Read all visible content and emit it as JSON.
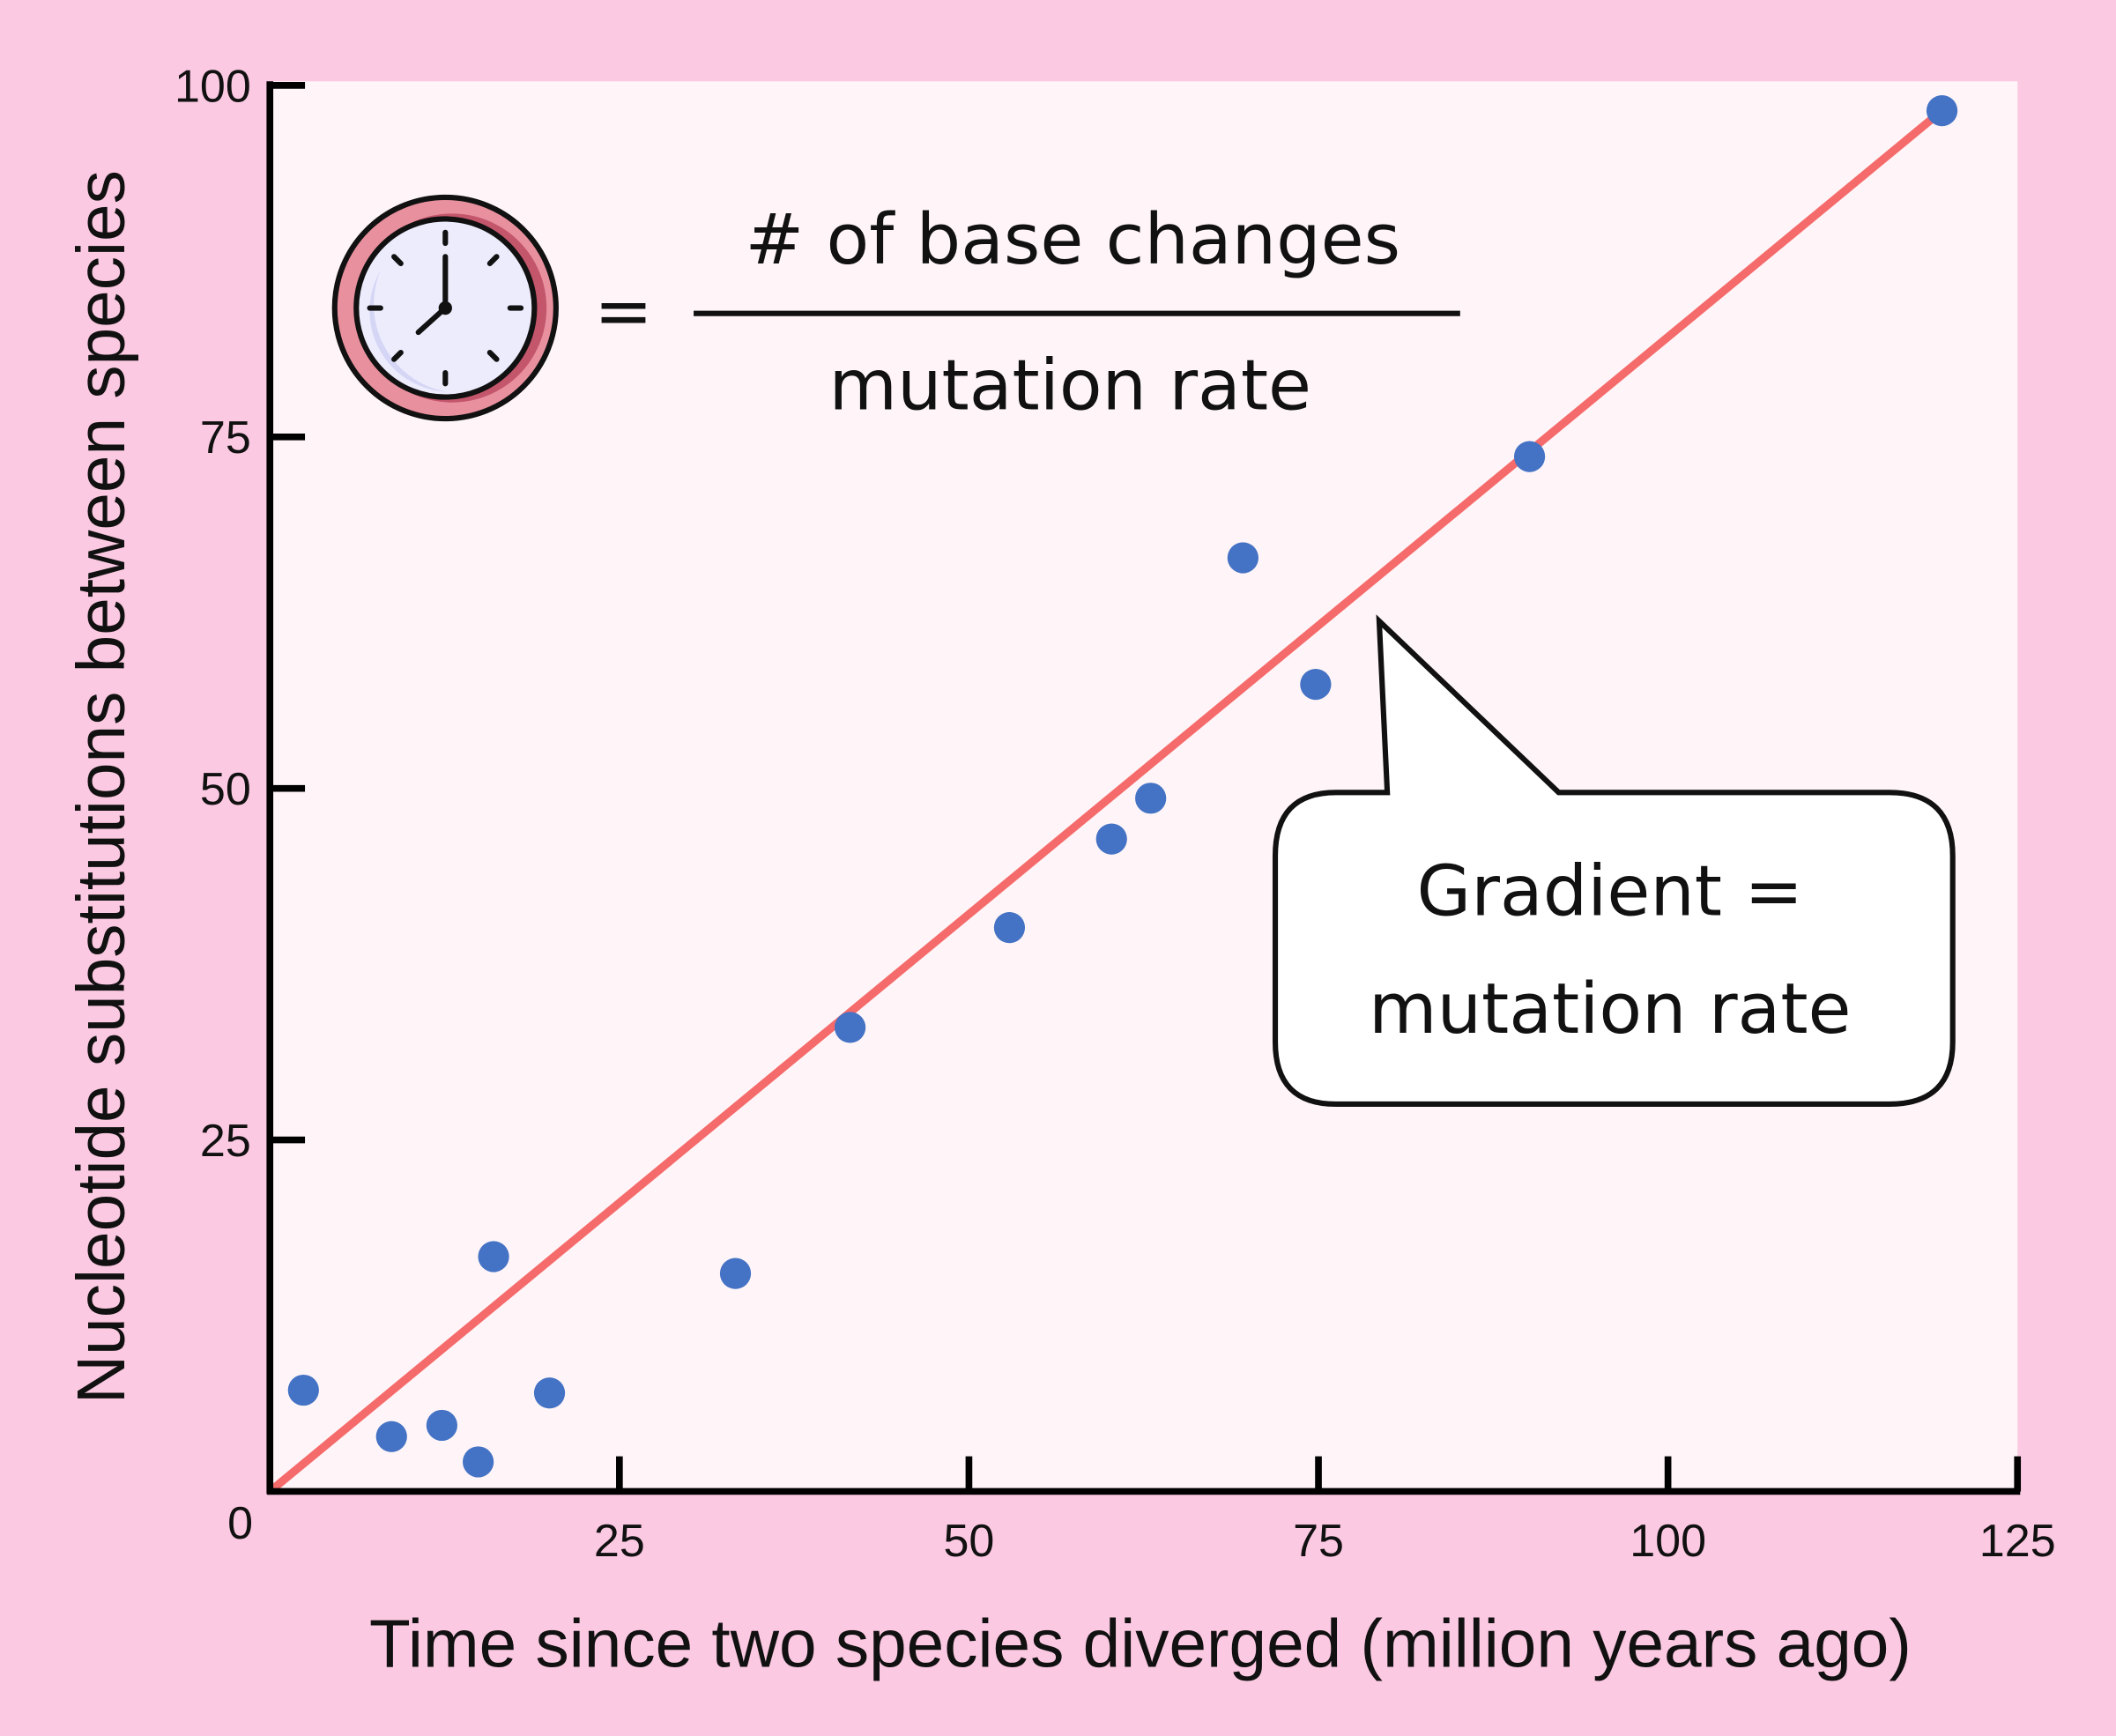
{
  "chart_data": {
    "type": "scatter",
    "xlabel": "Time since two species diverged (million years ago)",
    "ylabel": "Nucleotide substitutions between species",
    "xlim": [
      0,
      125
    ],
    "ylim": [
      0,
      100
    ],
    "xticks": [
      "0",
      "25",
      "50",
      "75",
      "100",
      "125"
    ],
    "yticks": [
      "25",
      "50",
      "75",
      "100"
    ],
    "grid": false,
    "points": [
      {
        "x": 2.4,
        "y": 7.2
      },
      {
        "x": 8.7,
        "y": 3.9
      },
      {
        "x": 12.3,
        "y": 4.7
      },
      {
        "x": 14.9,
        "y": 2.1
      },
      {
        "x": 16.0,
        "y": 16.7
      },
      {
        "x": 20.0,
        "y": 7.0
      },
      {
        "x": 33.3,
        "y": 15.5
      },
      {
        "x": 41.5,
        "y": 33.0
      },
      {
        "x": 52.9,
        "y": 40.1
      },
      {
        "x": 60.2,
        "y": 46.4
      },
      {
        "x": 63.0,
        "y": 49.3
      },
      {
        "x": 69.6,
        "y": 66.4
      },
      {
        "x": 74.8,
        "y": 57.4
      },
      {
        "x": 90.1,
        "y": 73.6
      },
      {
        "x": 119.6,
        "y": 98.2
      }
    ],
    "trendline": {
      "from": [
        0,
        0
      ],
      "to": [
        119.6,
        98.2
      ]
    },
    "annotations": {
      "formula_equals": "=",
      "formula_numerator": "# of base changes",
      "formula_denominator": "mutation rate",
      "callout_line1": "Gradient =",
      "callout_line2": "mutation rate",
      "icon": "clock-icon"
    },
    "colors": {
      "background": "#fcc9e2",
      "plot": "#fff5f8",
      "points": "#4472c4",
      "line": "#f56a6a",
      "clock_ring": "#d46a80",
      "clock_face": "#ececfd"
    }
  }
}
